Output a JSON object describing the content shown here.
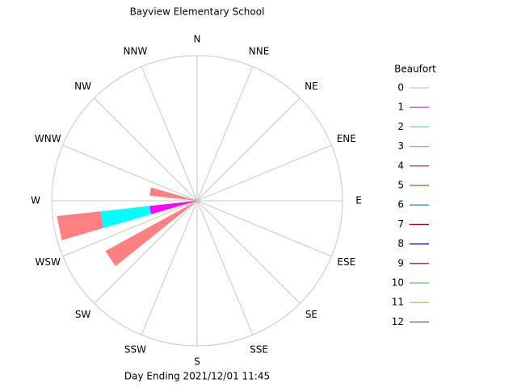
{
  "chart_data": {
    "type": "wind_rose",
    "title": "Bayview Elementary School",
    "footer": "Day Ending 2021/12/01 11:45",
    "legend_title": "Beaufort",
    "directions": [
      "N",
      "NNE",
      "NE",
      "ENE",
      "E",
      "ESE",
      "SE",
      "SSE",
      "S",
      "SSW",
      "SW",
      "WSW",
      "W",
      "WNW",
      "NW",
      "NNW"
    ],
    "series": [
      {
        "name": "0",
        "color": "#c8c8c8",
        "values": [
          0,
          0,
          0,
          0,
          0,
          0,
          0,
          0,
          0,
          0,
          0,
          0,
          0,
          0,
          0,
          0
        ]
      },
      {
        "name": "1",
        "color": "#ff00ff",
        "values": [
          0,
          0,
          0,
          0,
          0,
          0,
          0,
          0,
          0,
          0,
          0,
          33,
          0,
          0,
          0,
          0
        ]
      },
      {
        "name": "2",
        "color": "#00ffff",
        "values": [
          0,
          0,
          0,
          0,
          0,
          0,
          0,
          0,
          0,
          0,
          0,
          34,
          0,
          0,
          0,
          0
        ]
      },
      {
        "name": "3",
        "color": "#ff8080",
        "values": [
          0,
          0,
          0,
          0,
          0,
          0,
          0,
          0,
          0,
          0,
          72,
          30,
          33,
          0,
          0,
          0
        ]
      },
      {
        "name": "4",
        "color": "#c000c0",
        "values": [
          0,
          0,
          0,
          0,
          0,
          0,
          0,
          0,
          0,
          0,
          0,
          0,
          0,
          0,
          0,
          0
        ]
      },
      {
        "name": "5",
        "color": "#b06000",
        "values": [
          0,
          0,
          0,
          0,
          0,
          0,
          0,
          0,
          0,
          0,
          0,
          0,
          0,
          0,
          0,
          0
        ]
      },
      {
        "name": "6",
        "color": "#008080",
        "values": [
          0,
          0,
          0,
          0,
          0,
          0,
          0,
          0,
          0,
          0,
          0,
          0,
          0,
          0,
          0,
          0
        ]
      },
      {
        "name": "7",
        "color": "#c00000",
        "values": [
          0,
          0,
          0,
          0,
          0,
          0,
          0,
          0,
          0,
          0,
          0,
          0,
          0,
          0,
          0,
          0
        ]
      },
      {
        "name": "8",
        "color": "#000080",
        "values": [
          0,
          0,
          0,
          0,
          0,
          0,
          0,
          0,
          0,
          0,
          0,
          0,
          0,
          0,
          0,
          0
        ]
      },
      {
        "name": "9",
        "color": "#800000",
        "values": [
          0,
          0,
          0,
          0,
          0,
          0,
          0,
          0,
          0,
          0,
          0,
          0,
          0,
          0,
          0,
          0
        ]
      },
      {
        "name": "10",
        "color": "#40e040",
        "values": [
          0,
          0,
          0,
          0,
          0,
          0,
          0,
          0,
          0,
          0,
          0,
          0,
          0,
          0,
          0,
          0
        ]
      },
      {
        "name": "11",
        "color": "#ff9900",
        "values": [
          0,
          0,
          0,
          0,
          0,
          0,
          0,
          0,
          0,
          0,
          0,
          0,
          0,
          0,
          0,
          0
        ]
      },
      {
        "name": "12",
        "color": "#0090a0",
        "values": [
          0,
          0,
          0,
          0,
          0,
          0,
          0,
          0,
          0,
          0,
          0,
          0,
          0,
          0,
          0,
          0
        ]
      }
    ]
  }
}
